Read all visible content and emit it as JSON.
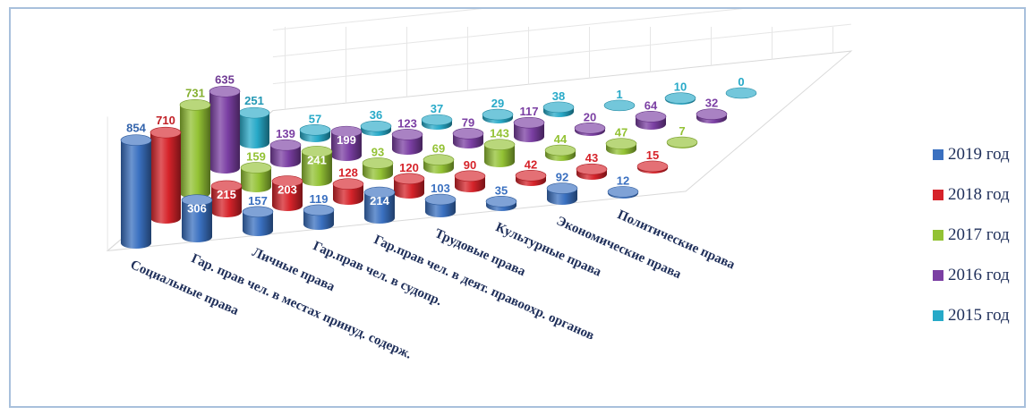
{
  "chart_data": {
    "type": "bar",
    "categories": [
      "Социальные права",
      "Гар. прав чел. в местах принуд. содерж.",
      "Личные права",
      "Гар.прав чел. в судопр.",
      "Гар.прав чел. в деят. правоохр. органов",
      "Трудовые права",
      "Культурные права",
      "Экономические права",
      "Политические права"
    ],
    "series": [
      {
        "name": "2019 год",
        "values": [
          854,
          306,
          157,
          119,
          214,
          103,
          35,
          92,
          12
        ],
        "color": "#3a70c0"
      },
      {
        "name": "2018 год",
        "values": [
          710,
          215,
          203,
          128,
          120,
          90,
          42,
          43,
          15
        ],
        "color": "#d6232a"
      },
      {
        "name": "2017 год",
        "values": [
          731,
          159,
          241,
          93,
          69,
          143,
          44,
          47,
          7
        ],
        "color": "#93c234"
      },
      {
        "name": "2016 год",
        "values": [
          635,
          139,
          199,
          123,
          79,
          117,
          20,
          64,
          32
        ],
        "color": "#7b3fa3"
      },
      {
        "name": "2015 год",
        "values": [
          251,
          57,
          36,
          37,
          29,
          38,
          1,
          10,
          0
        ],
        "color": "#27a9c8"
      }
    ],
    "legend_position": "right",
    "style": "3d-cylinders",
    "grid": true
  }
}
